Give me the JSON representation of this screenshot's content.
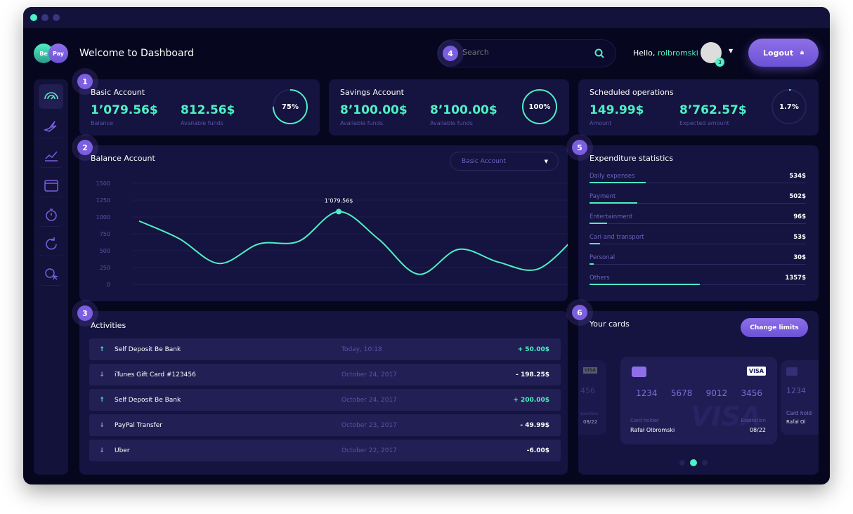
{
  "header": {
    "logo": [
      "Be",
      "Pay"
    ],
    "title": "Welcome to Dashboard",
    "search_placeholder": "Search",
    "greeting": "Hello,",
    "username": "rolbromski",
    "notifications": "3",
    "logout": "Logout"
  },
  "steps": [
    "1",
    "2",
    "3",
    "4",
    "5",
    "6"
  ],
  "sidebar": {
    "items": [
      "dashboard-icon",
      "rocket-icon",
      "chart-icon",
      "calendar-icon",
      "stopwatch-icon",
      "refresh-icon",
      "money-cursor-icon"
    ]
  },
  "accounts": [
    {
      "title": "Basic Account",
      "v1": "1’079.56$",
      "l1": "Balance",
      "v2": "812.56$",
      "l2": "Available funds",
      "pct": "75%",
      "fraction": 0.75
    },
    {
      "title": "Savings Account",
      "v1": "8’100.00$",
      "l1": "Available funds.",
      "v2": "8’100.00$",
      "l2": "Available funds",
      "pct": "100%",
      "fraction": 1.0
    },
    {
      "title": "Scheduled operations",
      "v1": "149.99$",
      "l1": "Amount",
      "v2": "8’762.57$",
      "l2": "Expected amount",
      "pct": "1.7%",
      "fraction": 0.017
    }
  ],
  "balance": {
    "title": "Balance Account",
    "dropdown": "Basic Account",
    "highlight": "1’079.56$"
  },
  "chart_data": {
    "type": "line",
    "yticks": [
      "1500",
      "1250",
      "1000",
      "750",
      "500",
      "250",
      "0"
    ],
    "ylim": [
      0,
      1500
    ],
    "values": [
      940,
      680,
      310,
      600,
      640,
      1079,
      670,
      150,
      520,
      330,
      230,
      750
    ],
    "highlight_index": 5,
    "color": "#4ef0c4",
    "grid": true
  },
  "activities": {
    "title": "Activities",
    "rows": [
      {
        "dir": "up",
        "name": "Self Deposit Be Bank",
        "date": "Today, 10:18",
        "amount": "+ 50.00$"
      },
      {
        "dir": "down",
        "name": "iTunes Gift Card #123456",
        "date": "October 24, 2017",
        "amount": "- 198.25$"
      },
      {
        "dir": "up",
        "name": "Self Deposit Be Bank",
        "date": "October 24, 2017",
        "amount": "+ 200.00$"
      },
      {
        "dir": "down",
        "name": "PayPal Transfer",
        "date": "October 23, 2017",
        "amount": "- 49.99$"
      },
      {
        "dir": "down",
        "name": "Uber",
        "date": "October 22, 2017",
        "amount": "-6.00$"
      }
    ]
  },
  "expenditure": {
    "title": "Expenditure statistics",
    "rows": [
      {
        "label": "Daily expenses",
        "value": "534$",
        "fraction": 0.26
      },
      {
        "label": "Payment",
        "value": "502$",
        "fraction": 0.22
      },
      {
        "label": "Entertainment",
        "value": "96$",
        "fraction": 0.08
      },
      {
        "label": "Cari and transport",
        "value": "53$",
        "fraction": 0.05
      },
      {
        "label": "Personal",
        "value": "30$",
        "fraction": 0.02
      },
      {
        "label": "Others",
        "value": "1357$",
        "fraction": 0.51
      }
    ]
  },
  "cards": {
    "title": "Your cards",
    "change_limits": "Change limits",
    "brand": "VISA",
    "number": [
      "1234",
      "5678",
      "9012",
      "3456"
    ],
    "holder_label": "Card holder",
    "holder": "Rafał Olbromski",
    "exp_label": "Expiration",
    "exp": "08/22",
    "left_partial_number": "456",
    "left_partial_exp": "08/22",
    "right_partial_number": "1234",
    "right_partial_holder": "Rafał Ol",
    "right_partial_label": "Card hold",
    "left_partial_label": "xpiration",
    "active_page": 2,
    "pages": 3
  },
  "colors": {
    "accent": "#4ef0c4",
    "purple": "#7b5fe0",
    "panel": "#15133f",
    "bg": "#06061f"
  }
}
